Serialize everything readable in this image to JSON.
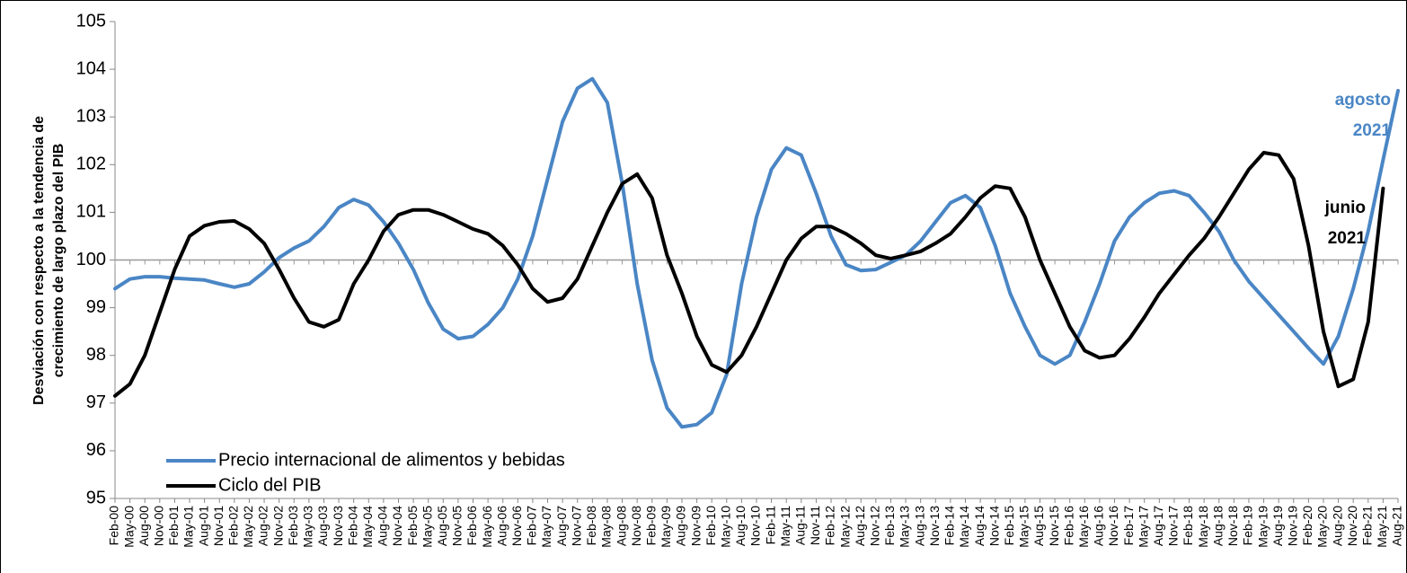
{
  "chart_data": {
    "type": "line",
    "y_label": [
      "Desviación con respecto a la tendencia de",
      "crecimiento de largo plazo del PIB"
    ],
    "categories": [
      "Feb-00",
      "May-00",
      "Aug-00",
      "Nov-00",
      "Feb-01",
      "May-01",
      "Aug-01",
      "Nov-01",
      "Feb-02",
      "May-02",
      "Aug-02",
      "Nov-02",
      "Feb-03",
      "May-03",
      "Aug-03",
      "Nov-03",
      "Feb-04",
      "May-04",
      "Aug-04",
      "Nov-04",
      "Feb-05",
      "May-05",
      "Aug-05",
      "Nov-05",
      "Feb-06",
      "May-06",
      "Aug-06",
      "Nov-06",
      "Feb-07",
      "May-07",
      "Aug-07",
      "Nov-07",
      "Feb-08",
      "May-08",
      "Aug-08",
      "Nov-08",
      "Feb-09",
      "May-09",
      "Aug-09",
      "Nov-09",
      "Feb-10",
      "May-10",
      "Aug-10",
      "Nov-10",
      "Feb-11",
      "May-11",
      "Aug-11",
      "Nov-11",
      "Feb-12",
      "May-12",
      "Aug-12",
      "Nov-12",
      "Feb-13",
      "May-13",
      "Aug-13",
      "Nov-13",
      "Feb-14",
      "May-14",
      "Aug-14",
      "Nov-14",
      "Feb-15",
      "May-15",
      "Aug-15",
      "Nov-15",
      "Feb-16",
      "May-16",
      "Aug-16",
      "Nov-16",
      "Feb-17",
      "May-17",
      "Aug-17",
      "Nov-17",
      "Feb-18",
      "May-18",
      "Aug-18",
      "Nov-18",
      "Feb-19",
      "May-19",
      "Aug-19",
      "Nov-19",
      "Feb-20",
      "May-20",
      "Aug-20",
      "Nov-20",
      "Feb-21",
      "May-21",
      "Aug-21"
    ],
    "series": [
      {
        "name": "Precio internacional de alimentos y bebidas",
        "color": "#4a86c5",
        "values": [
          99.4,
          99.6,
          99.65,
          99.65,
          99.62,
          99.6,
          99.58,
          99.5,
          99.43,
          99.5,
          99.75,
          100.05,
          100.25,
          100.4,
          100.7,
          101.1,
          101.27,
          101.15,
          100.8,
          100.35,
          99.8,
          99.1,
          98.55,
          98.35,
          98.4,
          98.65,
          99.0,
          99.6,
          100.5,
          101.7,
          102.9,
          103.6,
          103.8,
          103.3,
          101.6,
          99.5,
          97.9,
          96.9,
          96.5,
          96.55,
          96.8,
          97.6,
          99.5,
          100.9,
          101.9,
          102.35,
          102.2,
          101.4,
          100.5,
          99.9,
          99.78,
          99.8,
          99.95,
          100.1,
          100.4,
          100.8,
          101.2,
          101.35,
          101.1,
          100.3,
          99.3,
          98.6,
          98.0,
          97.82,
          98.0,
          98.7,
          99.5,
          100.4,
          100.9,
          101.2,
          101.4,
          101.45,
          101.35,
          101.0,
          100.6,
          100.0,
          99.55,
          99.2,
          98.85,
          98.5,
          98.15,
          97.82,
          98.4,
          99.4,
          100.6,
          102.1,
          103.55
        ]
      },
      {
        "name": "Ciclo del PIB",
        "color": "#000000",
        "values": [
          97.15,
          97.4,
          98.0,
          98.9,
          99.8,
          100.5,
          100.72,
          100.8,
          100.82,
          100.65,
          100.35,
          99.8,
          99.2,
          98.7,
          98.6,
          98.75,
          99.5,
          100.0,
          100.6,
          100.95,
          101.05,
          101.05,
          100.95,
          100.8,
          100.65,
          100.55,
          100.3,
          99.9,
          99.4,
          99.12,
          99.2,
          99.6,
          100.3,
          101.0,
          101.6,
          101.8,
          101.3,
          100.1,
          99.3,
          98.4,
          97.8,
          97.65,
          98.0,
          98.6,
          99.3,
          100.0,
          100.45,
          100.7,
          100.7,
          100.55,
          100.35,
          100.1,
          100.03,
          100.1,
          100.18,
          100.35,
          100.55,
          100.9,
          101.3,
          101.55,
          101.5,
          100.9,
          100.0,
          99.3,
          98.6,
          98.1,
          97.95,
          98.0,
          98.35,
          98.8,
          99.3,
          99.7,
          100.1,
          100.45,
          100.9,
          101.4,
          101.9,
          102.25,
          102.2,
          101.7,
          100.3,
          98.5,
          97.35,
          97.5,
          98.7,
          101.5,
          null
        ]
      }
    ],
    "annotations": [
      {
        "text": [
          "agosto",
          "2021"
        ],
        "color": "#4a86c5"
      },
      {
        "text": [
          "junio",
          "2021"
        ],
        "color": "#000000"
      }
    ],
    "hline": 100,
    "ylim": [
      95,
      105
    ],
    "yticks": [
      95,
      96,
      97,
      98,
      99,
      100,
      101,
      102,
      103,
      104,
      105
    ],
    "legend": "lower left"
  }
}
